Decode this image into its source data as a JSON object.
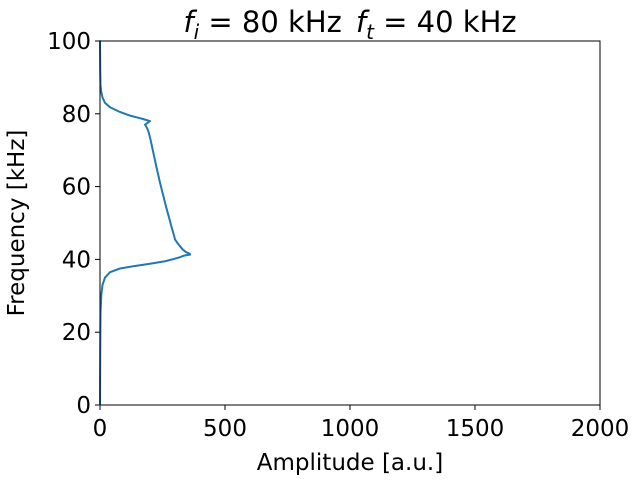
{
  "chart_data": {
    "type": "line",
    "title": "f_i = 80 kHz  f_t = 40 kHz",
    "title_parts": {
      "fi_symbol": "f",
      "fi_subscript": "i",
      "fi_value": " = 80 kHz",
      "ft_symbol": "f",
      "ft_subscript": "t",
      "ft_value": " = 40 kHz"
    },
    "xlabel": "Amplitude [a.u.]",
    "ylabel": "Frequency [kHz]",
    "xlim": [
      0,
      2000
    ],
    "ylim": [
      0,
      100
    ],
    "xticks": [
      0,
      500,
      1000,
      1500,
      2000
    ],
    "yticks": [
      0,
      20,
      40,
      60,
      80,
      100
    ],
    "grid": false,
    "line_color": "#1f77b4",
    "series": [
      {
        "x": [
          0,
          1,
          2,
          5,
          10,
          20,
          40,
          80,
          140,
          200,
          260,
          300,
          320,
          330,
          340,
          350,
          360,
          360,
          350,
          340,
          330,
          320,
          310,
          300,
          295,
          290,
          285,
          280,
          275,
          270,
          265,
          260,
          255,
          250,
          245,
          240,
          235,
          230,
          225,
          220,
          215,
          210,
          205,
          200,
          195,
          190,
          185,
          180,
          190,
          195,
          200,
          185,
          160,
          120,
          80,
          40,
          20,
          10,
          5,
          2,
          1,
          0
        ],
        "y": [
          0,
          15,
          25,
          30,
          33,
          35,
          36.5,
          37.5,
          38.2,
          38.8,
          39.5,
          40.2,
          40.6,
          40.9,
          41.1,
          41.2,
          41.3,
          41.5,
          41.8,
          42.2,
          42.8,
          43.6,
          44.5,
          45.5,
          46.8,
          48,
          49.2,
          50.5,
          51.8,
          53,
          54.3,
          55.6,
          57,
          58.3,
          59.7,
          61.1,
          62.6,
          64.1,
          65.6,
          67.2,
          68.8,
          70.4,
          72,
          73.5,
          74.8,
          75.8,
          76.5,
          77,
          77.5,
          77.8,
          78,
          78.3,
          78.8,
          79.5,
          80.5,
          81.8,
          83,
          84.5,
          86,
          88,
          92,
          100
        ]
      }
    ]
  }
}
